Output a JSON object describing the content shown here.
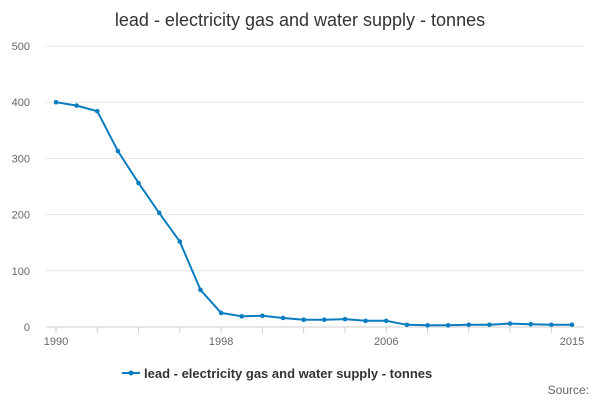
{
  "chart_data": {
    "type": "line",
    "title": "lead - electricity gas and water supply - tonnes",
    "xlabel": "",
    "ylabel": "",
    "xlim": [
      1990,
      2015
    ],
    "ylim": [
      0,
      500
    ],
    "yticks": [
      0,
      100,
      200,
      300,
      400,
      500
    ],
    "xticks": [
      1990,
      1998,
      2006,
      2015
    ],
    "grid": true,
    "legend_position": "bottom",
    "series": [
      {
        "name": "lead - electricity gas and water supply - tonnes",
        "color": "#0a7dc1",
        "x": [
          1990,
          1991,
          1992,
          1993,
          1994,
          1995,
          1996,
          1997,
          1998,
          1999,
          2000,
          2001,
          2002,
          2003,
          2004,
          2005,
          2006,
          2007,
          2008,
          2009,
          2010,
          2011,
          2012,
          2013,
          2014,
          2015
        ],
        "values": [
          400,
          394,
          384,
          313,
          256,
          203,
          152,
          66,
          25,
          19,
          20,
          16,
          13,
          13,
          14,
          11,
          11,
          4,
          3,
          3,
          4,
          4,
          6,
          5,
          4,
          4
        ]
      }
    ]
  },
  "footer": {
    "source_label": "Source:"
  }
}
